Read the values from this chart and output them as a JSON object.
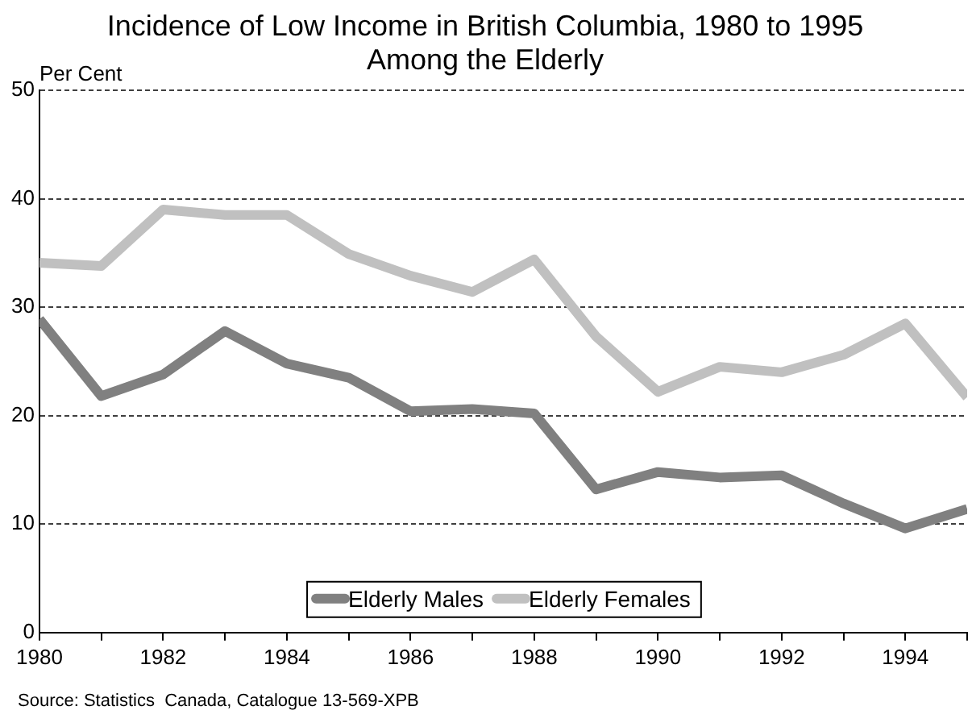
{
  "chart_data": {
    "type": "line",
    "title": "Incidence of Low Income in British Columbia, 1980 to 1995\nAmong the Elderly",
    "ylabel": "Per Cent",
    "x": [
      1980,
      1981,
      1982,
      1983,
      1984,
      1985,
      1986,
      1987,
      1988,
      1989,
      1990,
      1991,
      1992,
      1993,
      1994,
      1995
    ],
    "series": [
      {
        "name": "Elderly Males",
        "color": "#808080",
        "values": [
          28.9,
          21.8,
          23.8,
          27.8,
          24.8,
          23.5,
          20.4,
          20.6,
          20.2,
          13.2,
          14.8,
          14.3,
          14.5,
          11.9,
          9.6,
          11.4
        ]
      },
      {
        "name": "Elderly Females",
        "color": "#c0c0c0",
        "values": [
          34.1,
          33.8,
          39.0,
          38.5,
          38.5,
          34.9,
          32.9,
          31.4,
          34.4,
          27.3,
          22.2,
          24.5,
          24.0,
          25.6,
          28.5,
          21.7
        ]
      }
    ],
    "xlim": [
      1980,
      1995
    ],
    "xticks": [
      1980,
      {
        "value": 1981,
        "label": null
      },
      1982,
      {
        "value": 1983,
        "label": null
      },
      1984,
      {
        "value": 1985,
        "label": null
      },
      1986,
      {
        "value": 1987,
        "label": null
      },
      1988,
      {
        "value": 1989,
        "label": null
      },
      1990,
      {
        "value": 1991,
        "label": null
      },
      1992,
      {
        "value": 1993,
        "label": null
      },
      1994,
      {
        "value": 1995,
        "label": null
      }
    ],
    "ylim": [
      0,
      50
    ],
    "yticks": [
      0,
      10,
      20,
      30,
      40,
      50
    ],
    "grid": "y",
    "legend": "bottom",
    "marker": "none",
    "line_style": "solid",
    "annotations": [
      "Source: Statistics  Canada, Catalogue 13-569-XPB"
    ]
  }
}
